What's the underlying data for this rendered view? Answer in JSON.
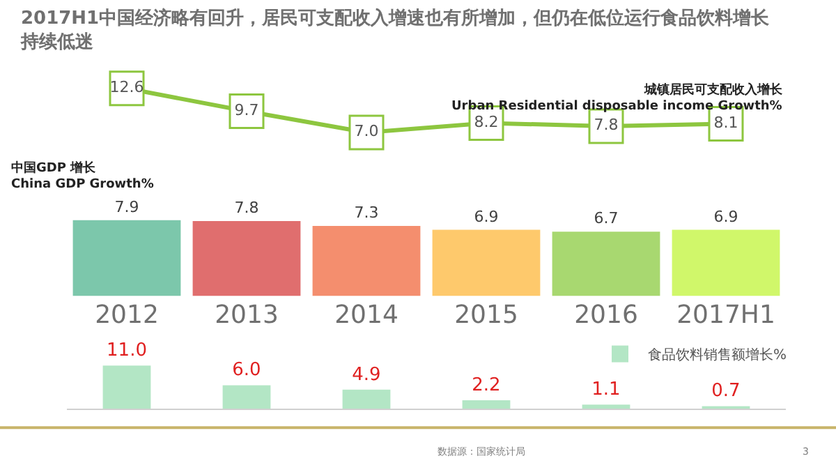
{
  "chart_data": [
    {
      "type": "line",
      "title": "2017H1中国经济略有回升，居民可支配收入增速也有所增加，但仍在低位运行食品饮料增长持续低迷",
      "categories": [
        null,
        null,
        null,
        null,
        null,
        null
      ],
      "tick_labels": false,
      "marker": "square",
      "series": [
        {
          "name": "城镇居民可支配收入增长\nUrban Residential disposable income Growth%",
          "color": "#8dc63f",
          "values": [
            12.6,
            9.7,
            7.0,
            8.2,
            7.8,
            8.1
          ],
          "value_labels": [
            "12.6",
            "9.7",
            "7.0",
            "8.2",
            "7.8",
            "8.1"
          ]
        }
      ]
    },
    {
      "type": "bar",
      "categories": [
        "2012",
        "2013",
        "2014",
        "2015",
        "2016",
        "2017H1"
      ],
      "tick_labels": "x",
      "data_labels": true,
      "series": [
        {
          "name": "中国GDP 增长\nChina GDP Growth%",
          "colors": [
            "#7cc7ab",
            "#e06e6e",
            "#f48e6e",
            "#fec96c",
            "#a8d870",
            "#d0f76a"
          ],
          "values": [
            7.9,
            7.8,
            7.3,
            6.9,
            6.7,
            6.9
          ]
        }
      ]
    },
    {
      "type": "bar",
      "categories": [
        null,
        null,
        null,
        null,
        null,
        null
      ],
      "tick_labels": false,
      "legend": "top right",
      "series": [
        {
          "name": "食品饮料销售额增长%",
          "color": "#b3e6c5",
          "values": [
            11.0,
            6.0,
            4.9,
            2.2,
            1.1,
            0.7
          ],
          "value_labels": [
            "11.0",
            "6.0",
            "4.9",
            "2.2",
            "1.1",
            "0.7"
          ]
        }
      ],
      "annotations": [
        "数据源：国家统计局",
        "3"
      ]
    }
  ]
}
